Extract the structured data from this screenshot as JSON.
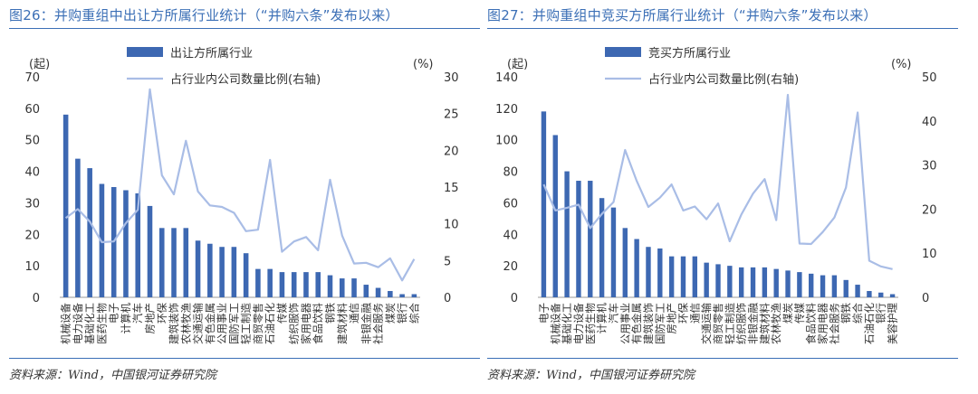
{
  "chart_data": [
    {
      "type": "bar+line",
      "title": "图26：并购重组中出让方所属行业统计（“并购六条”发布以来）",
      "left_unit": "(起)",
      "right_unit": "(%)",
      "ylim": [
        0,
        70
      ],
      "yticks": [
        0,
        10,
        20,
        30,
        40,
        50,
        60,
        70
      ],
      "y2lim": [
        0,
        30
      ],
      "y2ticks": [
        0,
        5,
        10,
        15,
        20,
        25,
        30
      ],
      "legend": {
        "bar": "出让方所属行业",
        "line": "占行业内公司数量比例(右轴)"
      },
      "categories": [
        "机械设备",
        "电力设备",
        "基础化工",
        "医药生物",
        "电子",
        "计算机",
        "汽车",
        "房地产",
        "环保",
        "建筑装饰",
        "农林牧渔",
        "交通运输",
        "有色金属",
        "公用事业",
        "国防军工",
        "轻工制造",
        "商贸零售",
        "石油石化",
        "传媒",
        "纺织服饰",
        "家用电器",
        "食品饮料",
        "钢铁",
        "建筑材料",
        "通信",
        "非银金融",
        "社会服务",
        "煤炭",
        "银行",
        "综合"
      ],
      "series": [
        {
          "name": "出让方所属行业",
          "kind": "bar",
          "axis": "left",
          "values": [
            58,
            44,
            41,
            36,
            35,
            34,
            33,
            29,
            22,
            22,
            22,
            18,
            17,
            16,
            16,
            14,
            9,
            9,
            8,
            8,
            8,
            8,
            7,
            6,
            6,
            4,
            3,
            2,
            1,
            1
          ]
        },
        {
          "name": "占行业内公司数量比例(右轴)",
          "kind": "line",
          "axis": "right",
          "values": [
            10.8,
            12.0,
            10.3,
            7.5,
            7.6,
            10.1,
            11.9,
            28.3,
            16.6,
            14.0,
            21.3,
            14.4,
            12.5,
            12.3,
            11.5,
            9.0,
            9.2,
            18.7,
            6.2,
            7.6,
            8.2,
            6.4,
            16.0,
            8.4,
            4.6,
            4.7,
            4.1,
            5.3,
            2.3,
            5.2
          ]
        }
      ],
      "source": "资料来源：Wind，中国银河证券研究院"
    },
    {
      "type": "bar+line",
      "title": "图27：并购重组中竞买方所属行业统计（“并购六条”发布以来）",
      "left_unit": "(起)",
      "right_unit": "(%)",
      "ylim": [
        0,
        140
      ],
      "yticks": [
        0,
        20,
        40,
        60,
        80,
        100,
        120,
        140
      ],
      "y2lim": [
        0,
        50
      ],
      "y2ticks": [
        0,
        10,
        20,
        30,
        40,
        50
      ],
      "legend": {
        "bar": "竞买方所属行业",
        "line": "占行业内公司数量比例(右轴)"
      },
      "categories": [
        "电子",
        "机械设备",
        "基础化工",
        "电力设备",
        "医药生物",
        "计算机",
        "汽车",
        "公用事业",
        "有色金属",
        "建筑装饰",
        "国防军工",
        "房地产",
        "环保",
        "通信",
        "交通运输",
        "商贸零售",
        "轻工制造",
        "纺织服饰",
        "非银金融",
        "建筑材料",
        "农林牧渔",
        "煤炭",
        "传媒",
        "食品饮料",
        "家用电器",
        "社会服务",
        "钢铁",
        "综合",
        "石油石化",
        "银行",
        "美容护理"
      ],
      "series": [
        {
          "name": "竞买方所属行业",
          "kind": "bar",
          "axis": "left",
          "values": [
            118,
            103,
            80,
            74,
            74,
            63,
            57,
            44,
            37,
            32,
            31,
            26,
            26,
            26,
            22,
            21,
            20,
            19,
            19,
            19,
            18,
            17,
            16,
            15,
            14,
            14,
            11,
            8,
            4,
            3,
            2
          ]
        },
        {
          "name": "占行业内公司数量比例(右轴)",
          "kind": "line",
          "axis": "right",
          "values": [
            25.6,
            19.7,
            20.3,
            21.0,
            15.7,
            18.9,
            21.6,
            33.4,
            26.4,
            20.5,
            22.6,
            25.6,
            19.7,
            20.6,
            17.7,
            21.3,
            12.7,
            18.8,
            23.5,
            26.8,
            17.5,
            45.9,
            12.2,
            12.1,
            14.8,
            18.1,
            24.9,
            41.9,
            8.3,
            7.0,
            6.4
          ]
        }
      ],
      "source": "资料来源：Wind，中国银河证券研究院"
    }
  ]
}
